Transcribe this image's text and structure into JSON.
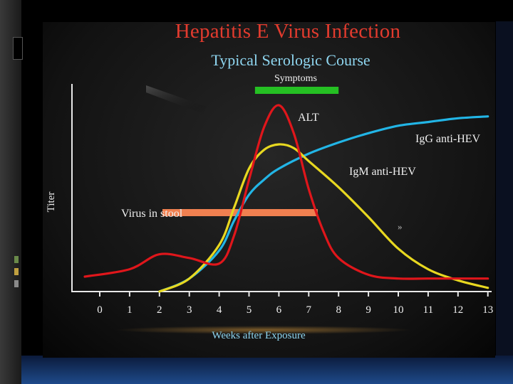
{
  "title": "Hepatitis E Virus Infection",
  "subtitle": "Typical Serologic Course",
  "chart_data": {
    "type": "line",
    "xlabel": "Weeks after Exposure",
    "ylabel": "Titer",
    "x_ticks": [
      "0",
      "1",
      "2",
      "3",
      "4",
      "5",
      "6",
      "7",
      "8",
      "9",
      "10",
      "11",
      "12",
      "13"
    ],
    "xlim": [
      -1,
      13
    ],
    "ylim": [
      0,
      1
    ],
    "series": [
      {
        "name": "ALT",
        "color": "#e0161b",
        "x": [
          -0.5,
          1,
          2,
          3,
          4,
          4.5,
          5,
          5.5,
          6,
          6.5,
          7,
          7.5,
          8,
          9,
          10,
          11,
          12,
          13
        ],
        "y": [
          0.08,
          0.12,
          0.2,
          0.18,
          0.15,
          0.3,
          0.6,
          0.88,
          1.0,
          0.85,
          0.55,
          0.32,
          0.18,
          0.09,
          0.07,
          0.07,
          0.07,
          0.07
        ]
      },
      {
        "name": "IgM anti-HEV",
        "color": "#e8d820",
        "x": [
          2,
          3,
          4,
          4.5,
          5,
          5.5,
          6,
          6.5,
          7,
          8,
          9,
          10,
          11,
          12,
          13
        ],
        "y": [
          0.0,
          0.07,
          0.25,
          0.45,
          0.66,
          0.76,
          0.79,
          0.77,
          0.7,
          0.56,
          0.4,
          0.23,
          0.12,
          0.06,
          0.02
        ]
      },
      {
        "name": "IgG anti-HEV",
        "color": "#22b5e6",
        "x": [
          2,
          3,
          4,
          4.5,
          5,
          5.5,
          6,
          7,
          8,
          9,
          10,
          11,
          12,
          13
        ],
        "y": [
          0.0,
          0.07,
          0.22,
          0.38,
          0.52,
          0.6,
          0.66,
          0.74,
          0.8,
          0.85,
          0.89,
          0.91,
          0.93,
          0.94
        ]
      }
    ],
    "bars": [
      {
        "name": "Symptoms",
        "color": "#25c023",
        "x_start": 5.2,
        "x_end": 8.0
      },
      {
        "name": "Virus in stool",
        "color": "#f08050",
        "x_start": 2.1,
        "x_end": 7.3
      }
    ],
    "annotations": [
      {
        "text": "»"
      }
    ],
    "grid": false,
    "legend": "inline labels"
  }
}
